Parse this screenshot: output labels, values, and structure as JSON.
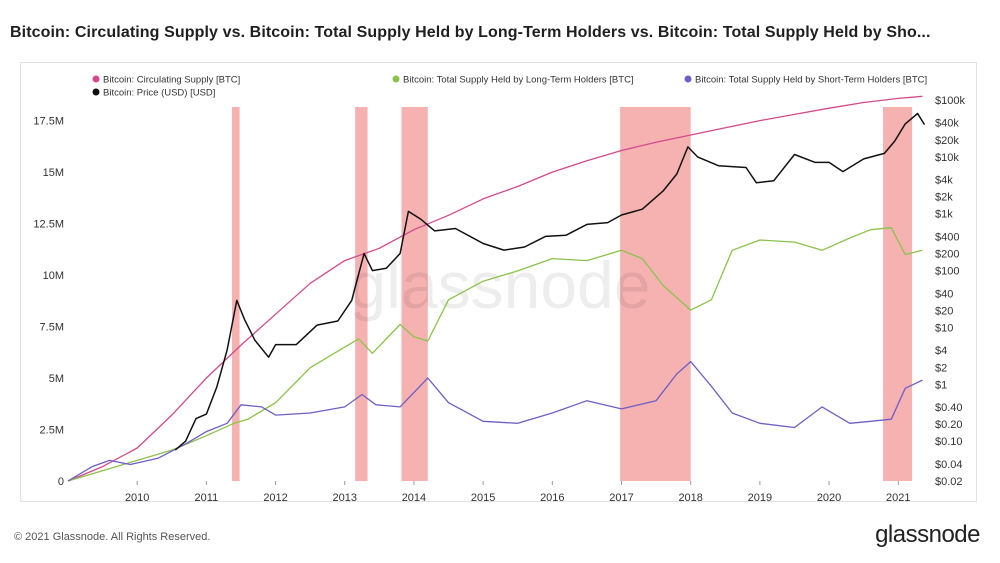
{
  "chart_data": {
    "type": "line",
    "title": "Bitcoin: Circulating Supply vs. Bitcoin: Total Supply Held by Long-Term Holders vs. Bitcoin: Total Supply Held by Sho...",
    "xlabel": "",
    "ylabel": "",
    "xlim": [
      2009.0,
      2021.43
    ],
    "ylim_left": [
      0,
      18500000
    ],
    "ylim_right_log": [
      0.02,
      100000
    ],
    "x_ticks": [
      2010,
      2011,
      2012,
      2013,
      2014,
      2015,
      2016,
      2017,
      2018,
      2019,
      2020,
      2021
    ],
    "x_tick_labels": [
      "2010",
      "2011",
      "2012",
      "2013",
      "2014",
      "2015",
      "2016",
      "2017",
      "2018",
      "2019",
      "2020",
      "2021"
    ],
    "left_ticks": [
      0,
      2500000,
      5000000,
      7500000,
      10000000,
      12500000,
      15000000,
      17500000
    ],
    "left_tick_labels": [
      "0",
      "2.5M",
      "5M",
      "7.5M",
      "10M",
      "12.5M",
      "15M",
      "17.5M"
    ],
    "right_ticks": [
      100000,
      40000,
      20000,
      10000,
      4000,
      2000,
      1000,
      400,
      200,
      100,
      40,
      20,
      10,
      4,
      2,
      1,
      0.4,
      0.2,
      0.1,
      0.04,
      0.02
    ],
    "right_tick_labels": [
      "$100k",
      "$40k",
      "$20k",
      "$10k",
      "$4k",
      "$2k",
      "$1k",
      "$400",
      "$200",
      "$100",
      "$40",
      "$20",
      "$10",
      "$4",
      "$2",
      "$1",
      "$0.40",
      "$0.20",
      "$0.10",
      "$0.04",
      "$0.02"
    ],
    "shaded_periods": [
      [
        2011.37,
        2011.48
      ],
      [
        2013.15,
        2013.33
      ],
      [
        2013.82,
        2014.2
      ],
      [
        2016.98,
        2018.0
      ],
      [
        2020.78,
        2021.2
      ]
    ],
    "legend": [
      {
        "label": "Bitcoin: Circulating Supply [BTC]",
        "color": "#d34a8c"
      },
      {
        "label": "Bitcoin: Total Supply Held by Long-Term Holders [BTC]",
        "color": "#8bc34a"
      },
      {
        "label": "Bitcoin: Total Supply Held by Short-Term Holders [BTC]",
        "color": "#6f5fc4"
      },
      {
        "label": "Bitcoin: Price (USD) [USD]",
        "color": "#111111"
      }
    ],
    "series": [
      {
        "name": "Bitcoin: Circulating Supply [BTC]",
        "axis": "left",
        "color": "#d34a8c",
        "x": [
          2009.0,
          2009.5,
          2010.0,
          2010.5,
          2011.0,
          2011.5,
          2012.0,
          2012.5,
          2013.0,
          2013.5,
          2014.0,
          2014.5,
          2015.0,
          2015.5,
          2016.0,
          2016.5,
          2017.0,
          2017.5,
          2018.0,
          2018.5,
          2019.0,
          2019.5,
          2020.0,
          2020.5,
          2021.0,
          2021.35
        ],
        "y": [
          0,
          700000,
          1600000,
          3200000,
          5000000,
          6600000,
          8100000,
          9600000,
          10700000,
          11300000,
          12200000,
          12900000,
          13700000,
          14300000,
          15000000,
          15550000,
          16050000,
          16450000,
          16800000,
          17150000,
          17500000,
          17800000,
          18100000,
          18380000,
          18580000,
          18680000
        ]
      },
      {
        "name": "Bitcoin: Total Supply Held by Long-Term Holders [BTC]",
        "axis": "left",
        "color": "#8bc34a",
        "x": [
          2009.0,
          2009.6,
          2010.0,
          2010.5,
          2011.0,
          2011.4,
          2011.6,
          2012.0,
          2012.5,
          2013.0,
          2013.2,
          2013.4,
          2013.8,
          2014.0,
          2014.2,
          2014.5,
          2015.0,
          2015.5,
          2016.0,
          2016.5,
          2017.0,
          2017.3,
          2017.6,
          2018.0,
          2018.3,
          2018.6,
          2019.0,
          2019.5,
          2019.9,
          2020.3,
          2020.6,
          2020.9,
          2021.1,
          2021.35
        ],
        "y": [
          0,
          600000,
          1000000,
          1500000,
          2200000,
          2800000,
          3000000,
          3800000,
          5500000,
          6500000,
          6900000,
          6200000,
          7600000,
          7000000,
          6800000,
          8800000,
          9700000,
          10200000,
          10800000,
          10700000,
          11200000,
          10800000,
          9500000,
          8300000,
          8800000,
          11200000,
          11700000,
          11600000,
          11200000,
          11800000,
          12200000,
          12300000,
          11000000,
          11200000
        ]
      },
      {
        "name": "Bitcoin: Total Supply Held by Short-Term Holders [BTC]",
        "axis": "left",
        "color": "#6f5fc4",
        "x": [
          2009.0,
          2009.35,
          2009.6,
          2009.9,
          2010.3,
          2010.7,
          2011.0,
          2011.3,
          2011.5,
          2011.8,
          2012.0,
          2012.5,
          2013.0,
          2013.25,
          2013.45,
          2013.8,
          2014.2,
          2014.5,
          2015.0,
          2015.5,
          2016.0,
          2016.5,
          2017.0,
          2017.5,
          2017.8,
          2018.0,
          2018.3,
          2018.6,
          2019.0,
          2019.5,
          2019.9,
          2020.3,
          2020.6,
          2020.9,
          2021.1,
          2021.35
        ],
        "y": [
          0,
          700000,
          1000000,
          800000,
          1100000,
          1800000,
          2400000,
          2800000,
          3700000,
          3600000,
          3200000,
          3300000,
          3600000,
          4200000,
          3700000,
          3600000,
          5000000,
          3800000,
          2900000,
          2800000,
          3300000,
          3900000,
          3500000,
          3900000,
          5200000,
          5800000,
          4600000,
          3300000,
          2800000,
          2600000,
          3600000,
          2800000,
          2900000,
          3000000,
          4500000,
          4900000
        ]
      },
      {
        "name": "Bitcoin: Price (USD) [USD]",
        "axis": "right",
        "color": "#111111",
        "x": [
          2010.55,
          2010.7,
          2010.85,
          2011.0,
          2011.15,
          2011.3,
          2011.44,
          2011.55,
          2011.7,
          2011.9,
          2012.0,
          2012.3,
          2012.6,
          2012.9,
          2013.1,
          2013.28,
          2013.4,
          2013.6,
          2013.8,
          2013.92,
          2014.1,
          2014.3,
          2014.6,
          2014.9,
          2015.0,
          2015.3,
          2015.6,
          2015.9,
          2016.2,
          2016.5,
          2016.8,
          2017.0,
          2017.3,
          2017.6,
          2017.8,
          2017.96,
          2018.1,
          2018.4,
          2018.8,
          2018.95,
          2019.2,
          2019.5,
          2019.8,
          2020.0,
          2020.2,
          2020.5,
          2020.8,
          2020.95,
          2021.1,
          2021.28,
          2021.38
        ],
        "y": [
          0.07,
          0.1,
          0.25,
          0.3,
          0.9,
          4,
          30,
          14,
          6,
          3,
          5,
          5,
          11,
          13,
          30,
          200,
          100,
          110,
          200,
          1100,
          800,
          500,
          550,
          350,
          300,
          230,
          260,
          400,
          420,
          650,
          700,
          950,
          1200,
          2500,
          5000,
          15000,
          10000,
          7000,
          6500,
          3500,
          3800,
          11000,
          8000,
          8000,
          5500,
          9200,
          11500,
          19000,
          38000,
          58000,
          37000
        ]
      }
    ]
  },
  "watermark": "glassnode",
  "footer": {
    "copyright": "© 2021 Glassnode. All Rights Reserved.",
    "logo_text": "glassnode"
  }
}
